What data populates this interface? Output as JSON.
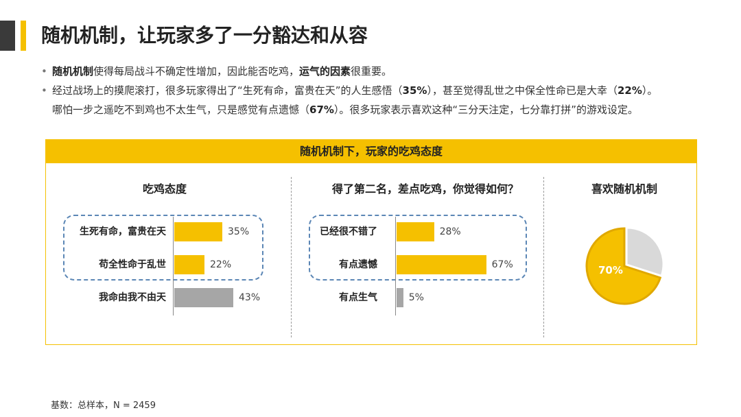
{
  "title": "随机机制，让玩家多了一分豁达和从容",
  "bullets": [
    {
      "p1_bold": "随机机制",
      "p1": "使得每局战斗不确定性增加，因此能否吃鸡，",
      "p2_bold": "运气的因素",
      "p2": "很重要。"
    },
    {
      "l1a": "经过战场上的摸爬滚打，很多玩家得出了“生死有命，富贵在天”的人生感悟（",
      "l1b": "35%",
      "l1c": "），甚至觉得乱世之中保全性命已是大幸（",
      "l1d": "22%",
      "l1e": "）。",
      "l2a": "哪怕一步之遥吃不到鸡也不太生气，只是感觉有点遗憾（",
      "l2b": "67%",
      "l2c": "）。很多玩家表示喜欢这种“三分天注定，七分靠打拼”的游戏设定。"
    }
  ],
  "panel_title": "随机机制下，玩家的吃鸡态度",
  "colors": {
    "yellow": "#f5c000",
    "gray": "#a6a6a6",
    "pie_gray": "#d9d9d9",
    "dash": "#5b86b5",
    "dark": "#3a3a3a"
  },
  "chart_data": [
    {
      "type": "bar",
      "title": "吃鸡态度",
      "categories": [
        "生死有命，富贵在天",
        "苟全性命于乱世",
        "我命由我不由天"
      ],
      "values": [
        35,
        22,
        43
      ],
      "value_labels": [
        "35%",
        "22%",
        "43%"
      ],
      "bar_colors": [
        "#f5c000",
        "#f5c000",
        "#a6a6a6"
      ],
      "orientation": "horizontal",
      "highlighted": [
        0,
        1
      ]
    },
    {
      "type": "bar",
      "title": "得了第二名，差点吃鸡，你觉得如何？",
      "categories": [
        "已经很不错了",
        "有点遗憾",
        "有点生气"
      ],
      "values": [
        28,
        67,
        5
      ],
      "value_labels": [
        "28%",
        "67%",
        "5%"
      ],
      "bar_colors": [
        "#f5c000",
        "#f5c000",
        "#a6a6a6"
      ],
      "orientation": "horizontal",
      "highlighted": [
        0,
        1
      ]
    },
    {
      "type": "pie",
      "title": "喜欢随机机制",
      "values": [
        70,
        30
      ],
      "labels": [
        "70%",
        ""
      ],
      "colors": [
        "#f5c000",
        "#d9d9d9"
      ]
    }
  ],
  "footer": "基数：总样本，N = 2459"
}
